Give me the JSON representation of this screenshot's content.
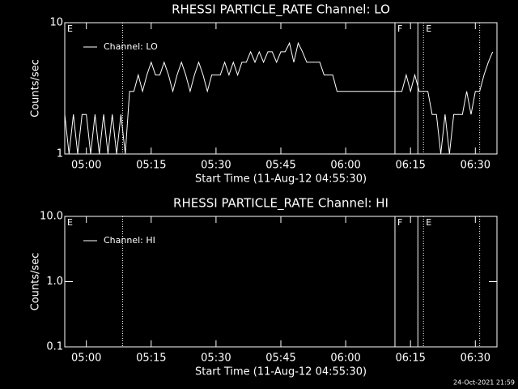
{
  "chart_data": [
    {
      "type": "line",
      "title": "RHESSI PARTICLE_RATE Channel: LO",
      "xlabel": "Start Time (11-Aug-12 04:55:30)",
      "ylabel": "Counts/sec",
      "yscale": "log",
      "ylim": [
        1,
        10
      ],
      "yticks": [
        1,
        10
      ],
      "xlim": [
        295,
        395
      ],
      "xticks": [
        {
          "value": 300,
          "label": "05:00"
        },
        {
          "value": 315,
          "label": "05:15"
        },
        {
          "value": 330,
          "label": "05:30"
        },
        {
          "value": 345,
          "label": "05:45"
        },
        {
          "value": 360,
          "label": "06:00"
        },
        {
          "value": 375,
          "label": "06:15"
        },
        {
          "value": 390,
          "label": "06:30"
        }
      ],
      "legend": "upper left",
      "x": [
        295,
        296,
        297,
        298,
        299,
        300,
        301,
        302,
        303,
        304,
        305,
        306,
        307,
        308,
        309,
        310,
        311,
        312,
        313,
        314,
        315,
        316,
        317,
        318,
        319,
        320,
        321,
        322,
        323,
        324,
        325,
        326,
        327,
        328,
        329,
        330,
        331,
        332,
        333,
        334,
        335,
        336,
        337,
        338,
        339,
        340,
        341,
        342,
        343,
        344,
        345,
        346,
        347,
        348,
        349,
        350,
        351,
        352,
        353,
        354,
        355,
        356,
        357,
        358,
        359,
        360,
        361,
        362,
        363,
        364,
        365,
        366,
        367,
        368,
        369,
        370,
        371,
        372,
        373,
        374,
        375,
        376,
        377,
        378,
        379,
        380,
        381,
        382,
        383,
        384,
        385,
        386,
        387,
        388,
        389,
        390,
        391,
        392,
        393,
        394
      ],
      "series": [
        {
          "name": "Channel: LO",
          "color": "#ffffff",
          "values": [
            2,
            1,
            2,
            1,
            2,
            2,
            1,
            2,
            1,
            2,
            1,
            2,
            1,
            2,
            1,
            3,
            3,
            4,
            3,
            4,
            5,
            4,
            4,
            5,
            4,
            3,
            4,
            5,
            4,
            3,
            4,
            5,
            4,
            3,
            4,
            4,
            4,
            5,
            4,
            5,
            4,
            5,
            5,
            6,
            5,
            6,
            5,
            6,
            6,
            5,
            6,
            6,
            7,
            5,
            7,
            6,
            5,
            5,
            5,
            5,
            4,
            4,
            4,
            3,
            3,
            3,
            3,
            3,
            3,
            3,
            3,
            3,
            3,
            3,
            3,
            3,
            3,
            3,
            3,
            4,
            3,
            4,
            3,
            3,
            3,
            2,
            2,
            1,
            2,
            1,
            2,
            2,
            2,
            3,
            2,
            3,
            3,
            4,
            5,
            6
          ]
        }
      ],
      "annotations": [
        {
          "x": 295,
          "label": "E",
          "style": "none"
        },
        {
          "x": 308.4,
          "style": "dotted"
        },
        {
          "x": 371.4,
          "label": "F",
          "style": "solid"
        },
        {
          "x": 376.7,
          "style": "solid"
        },
        {
          "x": 378,
          "label": "E",
          "style": "dotted"
        },
        {
          "x": 391,
          "style": "dotted"
        }
      ]
    },
    {
      "type": "line",
      "title": "RHESSI PARTICLE_RATE Channel: HI",
      "xlabel": "Start Time (11-Aug-12 04:55:30)",
      "ylabel": "Counts/sec",
      "yscale": "log",
      "ylim": [
        0.1,
        10
      ],
      "yticks": [
        0.1,
        {
          "value": 1,
          "label": "1.0"
        },
        {
          "value": 10,
          "label": "10.0"
        }
      ],
      "xlim": [
        295,
        395
      ],
      "xticks": [
        {
          "value": 300,
          "label": "05:00"
        },
        {
          "value": 315,
          "label": "05:15"
        },
        {
          "value": 330,
          "label": "05:30"
        },
        {
          "value": 345,
          "label": "05:45"
        },
        {
          "value": 360,
          "label": "06:00"
        },
        {
          "value": 375,
          "label": "06:15"
        },
        {
          "value": 390,
          "label": "06:30"
        }
      ],
      "legend": "upper left",
      "x": [],
      "series": [
        {
          "name": "Channel: HI",
          "color": "#ffffff",
          "values": []
        }
      ],
      "annotations": [
        {
          "x": 295,
          "label": "E",
          "style": "none"
        },
        {
          "x": 308.4,
          "style": "dotted"
        },
        {
          "x": 371.4,
          "label": "F",
          "style": "solid"
        },
        {
          "x": 376.7,
          "style": "solid"
        },
        {
          "x": 378,
          "label": "E",
          "style": "dotted"
        },
        {
          "x": 391,
          "style": "dotted"
        }
      ]
    }
  ],
  "footer": "24-Oct-2021 21:59"
}
